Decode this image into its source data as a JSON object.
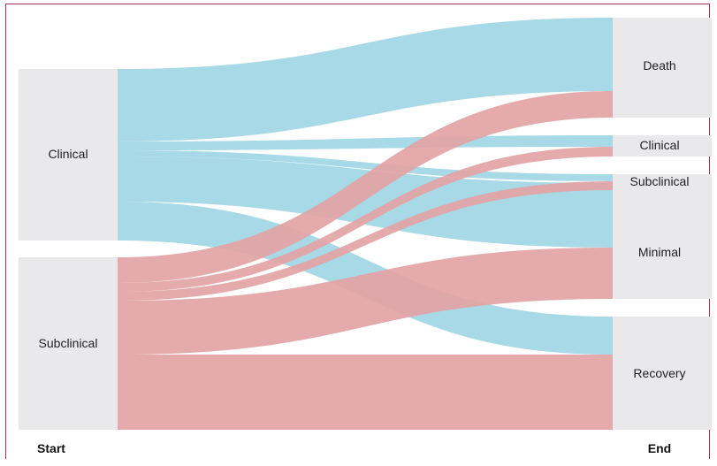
{
  "footer": {
    "start_label": "Start",
    "end_label": "End"
  },
  "colors": {
    "clinical_flow": "#a2d7e6",
    "subclinical_flow": "#e3a3a5",
    "node_fill": "#e9e9eb",
    "border": "#a8325e"
  },
  "nodes": {
    "start": [
      {
        "id": "clinical",
        "label": "Clinical"
      },
      {
        "id": "subclinical",
        "label": "Subclinical"
      }
    ],
    "end": [
      {
        "id": "death",
        "label": "Death"
      },
      {
        "id": "clinical",
        "label": "Clinical"
      },
      {
        "id": "subclinical",
        "label": "Subclinical"
      },
      {
        "id": "minimal",
        "label": "Minimal"
      },
      {
        "id": "recovery",
        "label": "Recovery"
      }
    ]
  },
  "flows": [
    {
      "from": "clinical",
      "to": "death"
    },
    {
      "from": "clinical",
      "to": "clinical"
    },
    {
      "from": "clinical",
      "to": "subclinical"
    },
    {
      "from": "clinical",
      "to": "minimal"
    },
    {
      "from": "clinical",
      "to": "recovery"
    },
    {
      "from": "subclinical",
      "to": "death"
    },
    {
      "from": "subclinical",
      "to": "clinical"
    },
    {
      "from": "subclinical",
      "to": "subclinical"
    },
    {
      "from": "subclinical",
      "to": "minimal"
    },
    {
      "from": "subclinical",
      "to": "recovery"
    }
  ]
}
